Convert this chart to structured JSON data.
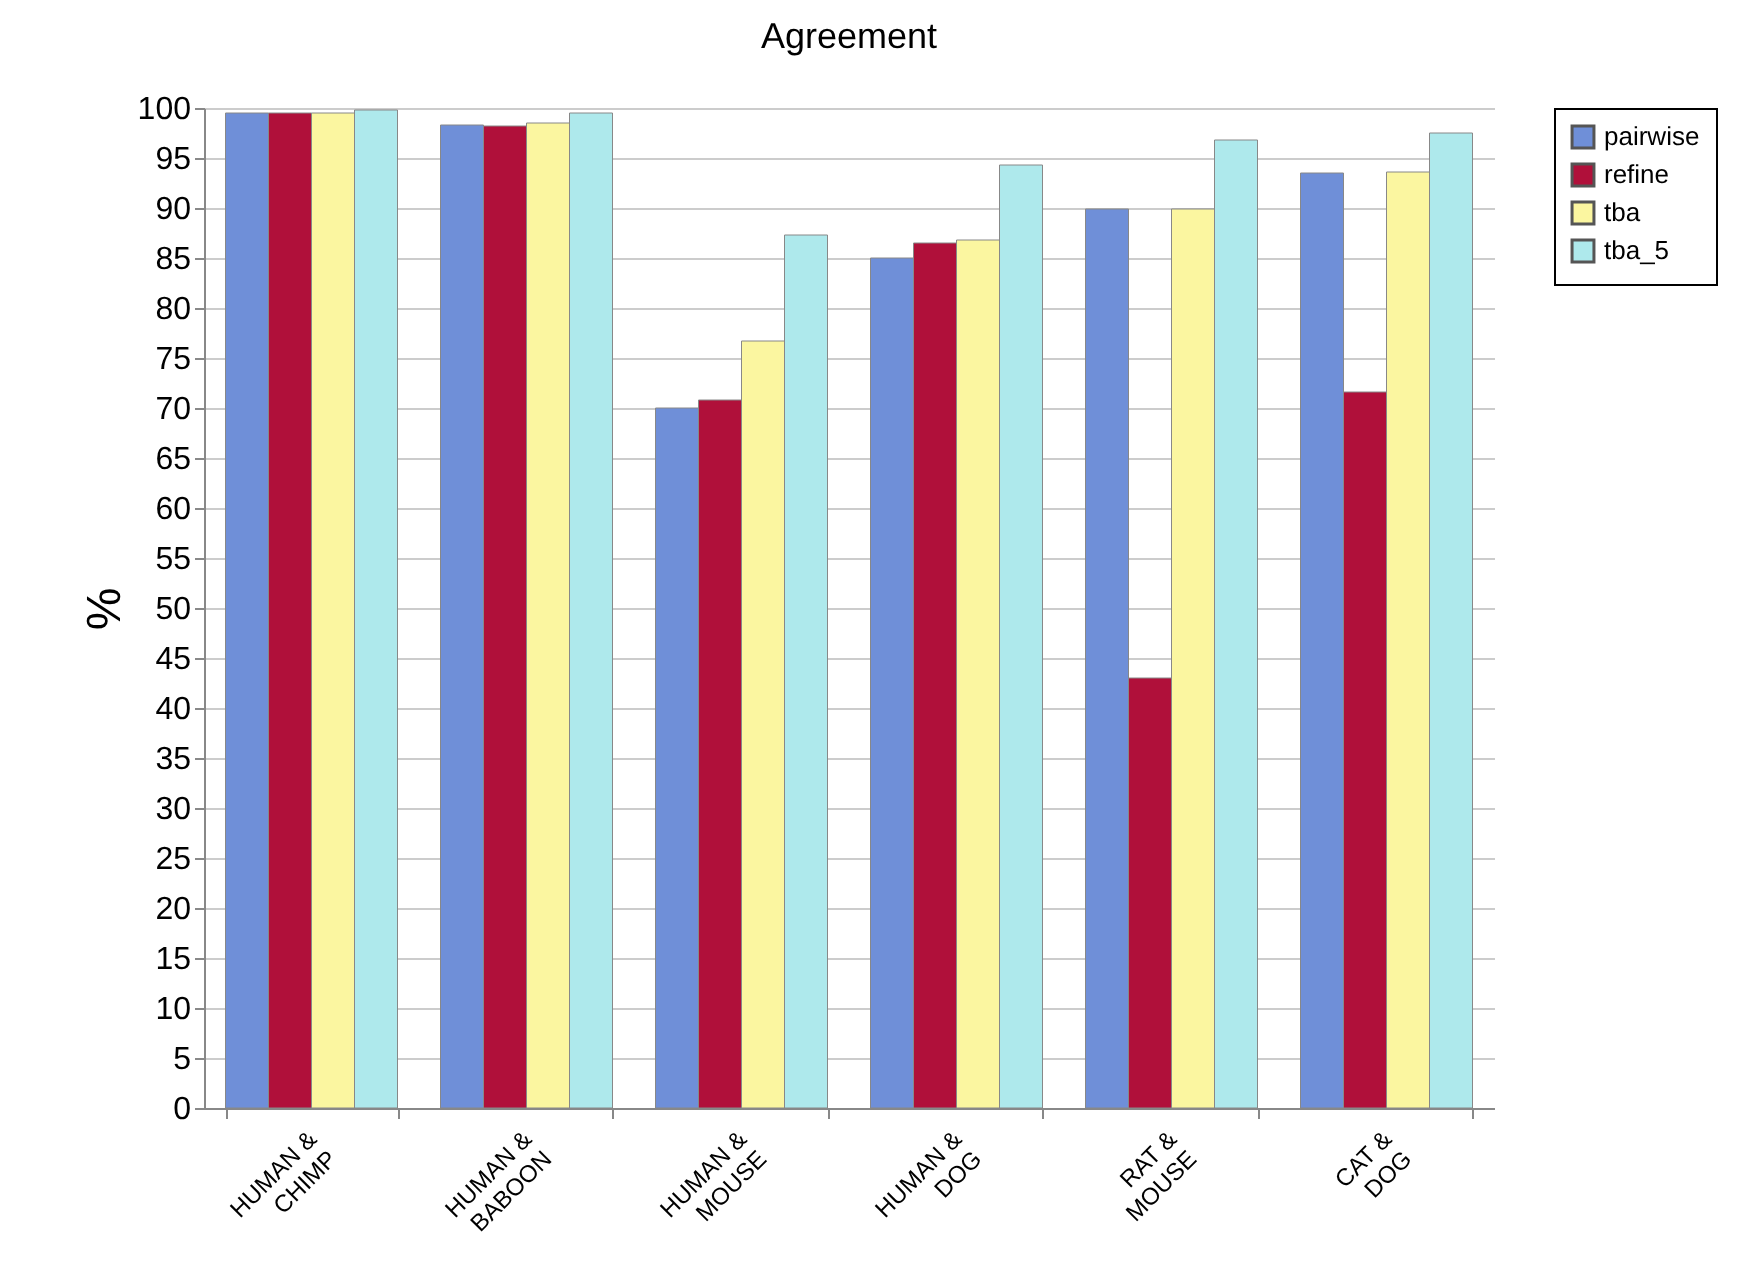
{
  "chart_data": {
    "type": "bar",
    "title": "Agreement",
    "ylabel": "%",
    "categories": [
      "HUMAN & CHIMP",
      "HUMAN & BABOON",
      "HUMAN & MOUSE",
      "HUMAN & DOG",
      "RAT & MOUSE",
      "CAT & DOG"
    ],
    "series": [
      {
        "name": "pairwise",
        "color": "#6f8fd8",
        "values": [
          99.5,
          98.3,
          70,
          85,
          89.9,
          93.5
        ]
      },
      {
        "name": "refine",
        "color": "#b0103a",
        "values": [
          99.5,
          98.2,
          70.8,
          86.5,
          43,
          71.6
        ]
      },
      {
        "name": "tba",
        "color": "#fbf6a0",
        "values": [
          99.5,
          98.5,
          76.7,
          86.8,
          89.9,
          93.6
        ]
      },
      {
        "name": "tba_5",
        "color": "#aee9ec",
        "values": [
          99.8,
          99.5,
          87.3,
          94.3,
          96.8,
          97.5
        ]
      }
    ],
    "ylim": [
      0,
      100
    ],
    "yticks": [
      0,
      5,
      10,
      15,
      20,
      25,
      30,
      35,
      40,
      45,
      50,
      55,
      60,
      65,
      70,
      75,
      80,
      85,
      90,
      95,
      100
    ],
    "grid": "y",
    "legend": "right"
  }
}
